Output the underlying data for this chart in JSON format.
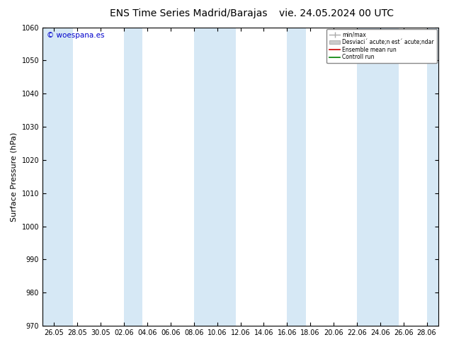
{
  "title_left": "ENS Time Series Madrid/Barajas",
  "title_right": "vie. 24.05.2024 00 UTC",
  "ylabel": "Surface Pressure (hPa)",
  "ylim": [
    970,
    1060
  ],
  "yticks": [
    970,
    980,
    990,
    1000,
    1010,
    1020,
    1030,
    1040,
    1050,
    1060
  ],
  "x_labels": [
    "26.05",
    "28.05",
    "30.05",
    "02.06",
    "04.06",
    "06.06",
    "08.06",
    "10.06",
    "12.06",
    "14.06",
    "16.06",
    "18.06",
    "20.06",
    "22.06",
    "24.06",
    "26.06",
    "28.06"
  ],
  "band_color": "#d6e8f5",
  "background_color": "#ffffff",
  "plot_bg_color": "#ffffff",
  "watermark": "© woespana.es",
  "watermark_color": "#0000cc",
  "legend_label_minmax": "min/max",
  "legend_label_std": "Desviaci´ acute;n est´ acute;ndar",
  "legend_label_ens": "Ensemble mean run",
  "legend_label_ctrl": "Controll run",
  "legend_color_minmax": "#aaaaaa",
  "legend_color_std": "#cccccc",
  "legend_color_ens": "#cc0000",
  "legend_color_ctrl": "#008000",
  "title_fontsize": 10,
  "tick_fontsize": 7,
  "ylabel_fontsize": 8,
  "fig_width": 6.34,
  "fig_height": 4.9,
  "dpi": 100,
  "band_xpositions": [
    0,
    3,
    7,
    8,
    10,
    11,
    13,
    14
  ]
}
